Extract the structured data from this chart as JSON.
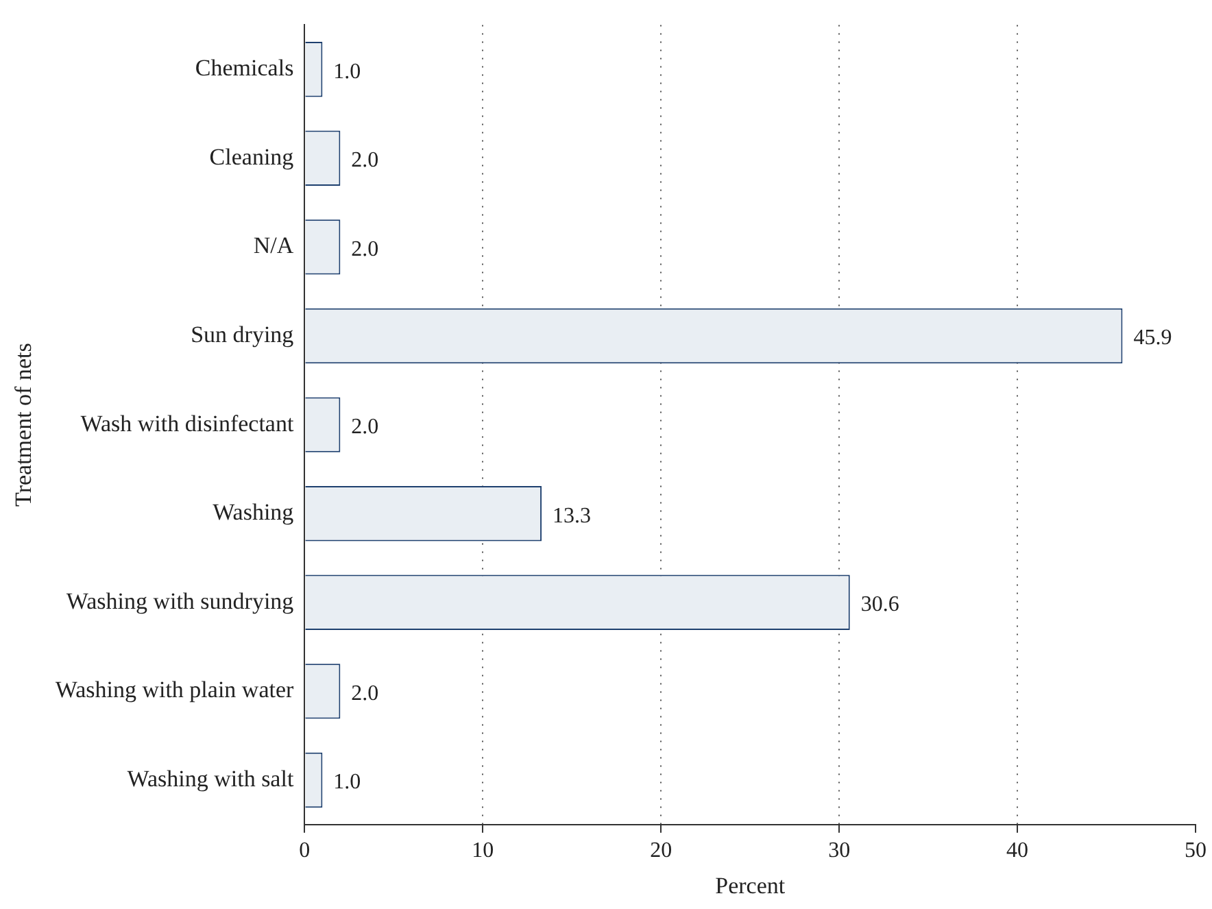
{
  "chart_data": {
    "type": "bar",
    "orientation": "horizontal",
    "xlabel": "Percent",
    "ylabel": "Treatment of nets",
    "categories": [
      "Chemicals",
      "Cleaning",
      "N/A",
      "Sun drying",
      "Wash with disinfectant",
      "Washing",
      "Washing with sundrying",
      "Washing with plain water",
      "Washing with salt"
    ],
    "values": [
      1.0,
      2.0,
      2.0,
      45.9,
      2.0,
      13.3,
      30.6,
      2.0,
      1.0
    ],
    "value_labels": [
      "1.0",
      "2.0",
      "2.0",
      "45.9",
      "2.0",
      "13.3",
      "30.6",
      "2.0",
      "1.0"
    ],
    "color": "#e9eef3",
    "xlim": [
      0,
      50
    ],
    "xticks": [
      0,
      10,
      20,
      30,
      40,
      50
    ],
    "grid": "x",
    "legend": false
  }
}
